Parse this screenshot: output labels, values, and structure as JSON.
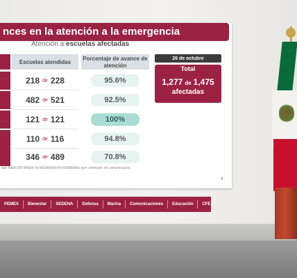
{
  "slide": {
    "title": "nces en la atención a la emergencia",
    "subtitle_prefix": "Atención a ",
    "subtitle_bold": "escuelas afectadas",
    "columns": {
      "schools": "Escuelas atendidas",
      "percent": "Porcentaje de avance de atención"
    },
    "rows": [
      {
        "attended": "218",
        "connector": "de",
        "total": "228",
        "percent": "95.6%"
      },
      {
        "attended": "482",
        "connector": "de",
        "total": "521",
        "percent": "92.5%"
      },
      {
        "attended": "121",
        "connector": "de",
        "total": "121",
        "percent": "100%"
      },
      {
        "attended": "110",
        "connector": "de",
        "total": "116",
        "percent": "94.8%"
      },
      {
        "attended": "346",
        "connector": "de",
        "total": "489",
        "percent": "70.8%"
      }
    ],
    "date_tag": "26 de octubre",
    "total": {
      "label": "Total",
      "attended": "1,277",
      "connector": "de",
      "total": "1,475",
      "sub": "afectadas"
    },
    "footnote": "que faltan por limpiar se encuentran en localidades que continúan sin comunicación.",
    "page_number": "4",
    "logos": [
      "PEMEX",
      "Bienestar",
      "SEDENA",
      "Defensa",
      "Marina",
      "Comunicaciones",
      "Educación",
      "CFE"
    ]
  },
  "colors": {
    "brand": "#9b2243",
    "header_bg": "#dbe0e6",
    "pill": "#e6f3f1",
    "pill_highlight": "#a8dcd4"
  }
}
